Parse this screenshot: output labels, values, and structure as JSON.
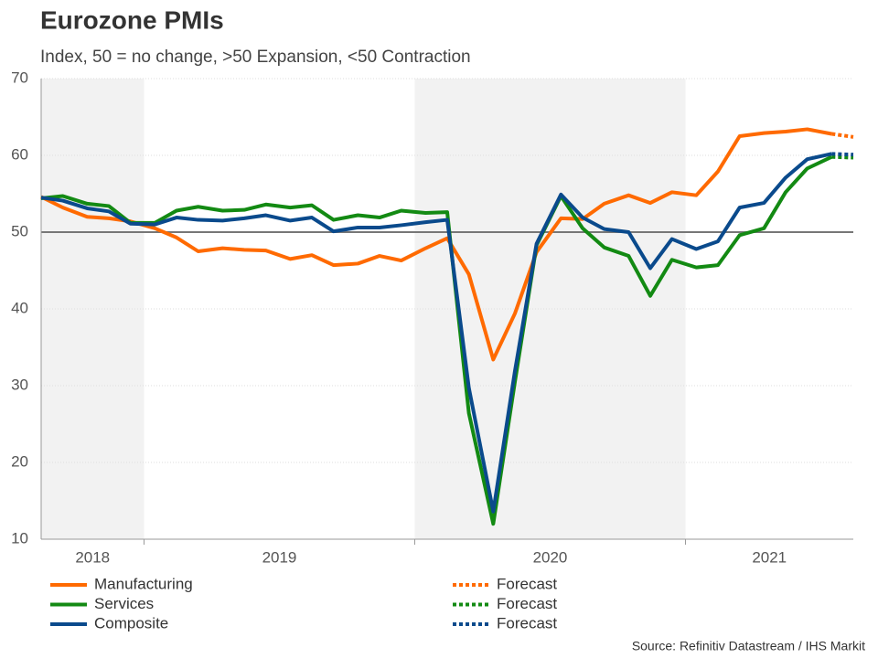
{
  "chart_data": {
    "type": "line",
    "title": "Eurozone PMIs",
    "subtitle": "Index, 50 = no change, >50 Expansion, <50 Contraction",
    "source": "Source: Refinitiv Datastream / IHS Markit",
    "x": [
      2018.62,
      2018.7,
      2018.79,
      2018.87,
      2018.95,
      2019.04,
      2019.12,
      2019.2,
      2019.29,
      2019.37,
      2019.45,
      2019.54,
      2019.62,
      2019.7,
      2019.79,
      2019.87,
      2019.95,
      2020.04,
      2020.12,
      2020.2,
      2020.29,
      2020.37,
      2020.45,
      2020.54,
      2020.62,
      2020.7,
      2020.79,
      2020.87,
      2020.95,
      2021.04,
      2021.12,
      2021.2,
      2021.29,
      2021.37,
      2021.45,
      2021.54,
      2021.62
    ],
    "xlim": [
      2018.62,
      2021.62
    ],
    "xticks": [
      {
        "value": 2018.81,
        "label": "2018"
      },
      {
        "value": 2019.5,
        "label": "2019"
      },
      {
        "value": 2020.5,
        "label": "2020"
      },
      {
        "value": 2021.31,
        "label": "2021"
      }
    ],
    "year_boundaries": [
      2019,
      2020,
      2021
    ],
    "shaded_periods": [
      [
        2018.62,
        2019
      ],
      [
        2020,
        2021
      ]
    ],
    "ylim": [
      10,
      70
    ],
    "yticks": [
      10,
      20,
      30,
      40,
      50,
      60,
      70
    ],
    "reference_line": 50,
    "grid": true,
    "series": [
      {
        "name": "Manufacturing",
        "color": "#ff6a00",
        "values": [
          54.6,
          53.2,
          52.0,
          51.8,
          51.4,
          50.5,
          49.3,
          47.5,
          47.9,
          47.7,
          47.6,
          46.5,
          47.0,
          45.7,
          45.9,
          46.9,
          46.3,
          47.9,
          49.2,
          44.5,
          33.4,
          39.4,
          47.4,
          51.8,
          51.7,
          53.7,
          54.8,
          53.8,
          55.2,
          54.8,
          57.9,
          62.5,
          62.9,
          63.1,
          63.4,
          62.8,
          null
        ]
      },
      {
        "name": "Services",
        "color": "#138a13",
        "values": [
          54.4,
          54.7,
          53.7,
          53.4,
          51.2,
          51.2,
          52.8,
          53.3,
          52.8,
          52.9,
          53.6,
          53.2,
          53.5,
          51.6,
          52.2,
          51.9,
          52.8,
          52.5,
          52.6,
          26.4,
          12.0,
          30.5,
          48.3,
          54.7,
          50.5,
          48.0,
          46.9,
          41.7,
          46.4,
          45.4,
          45.7,
          49.6,
          50.5,
          55.2,
          58.3,
          59.8,
          null
        ]
      },
      {
        "name": "Composite",
        "color": "#0a4a8c",
        "values": [
          54.5,
          54.1,
          53.1,
          52.7,
          51.1,
          51.0,
          51.9,
          51.6,
          51.5,
          51.8,
          52.2,
          51.5,
          51.9,
          50.1,
          50.6,
          50.6,
          50.9,
          51.3,
          51.6,
          29.7,
          13.6,
          31.9,
          48.5,
          54.9,
          51.9,
          50.4,
          50.0,
          45.3,
          49.1,
          47.8,
          48.8,
          53.2,
          53.8,
          57.1,
          59.5,
          60.2,
          null
        ]
      },
      {
        "name": "Forecast",
        "color": "#ff6a00",
        "dashed": true,
        "continues": 0,
        "values": [
          null,
          null,
          null,
          null,
          null,
          null,
          null,
          null,
          null,
          null,
          null,
          null,
          null,
          null,
          null,
          null,
          null,
          null,
          null,
          null,
          null,
          null,
          null,
          null,
          null,
          null,
          null,
          null,
          null,
          null,
          null,
          null,
          null,
          null,
          null,
          null,
          62.4
        ]
      },
      {
        "name": "Forecast",
        "color": "#138a13",
        "dashed": true,
        "continues": 1,
        "values": [
          null,
          null,
          null,
          null,
          null,
          null,
          null,
          null,
          null,
          null,
          null,
          null,
          null,
          null,
          null,
          null,
          null,
          null,
          null,
          null,
          null,
          null,
          null,
          null,
          null,
          null,
          null,
          null,
          null,
          null,
          null,
          null,
          null,
          null,
          null,
          null,
          59.7
        ]
      },
      {
        "name": "Forecast",
        "color": "#0a4a8c",
        "dashed": true,
        "continues": 2,
        "values": [
          null,
          null,
          null,
          null,
          null,
          null,
          null,
          null,
          null,
          null,
          null,
          null,
          null,
          null,
          null,
          null,
          null,
          null,
          null,
          null,
          null,
          null,
          null,
          null,
          null,
          null,
          null,
          null,
          null,
          null,
          null,
          null,
          null,
          null,
          null,
          null,
          60.1
        ]
      }
    ]
  }
}
